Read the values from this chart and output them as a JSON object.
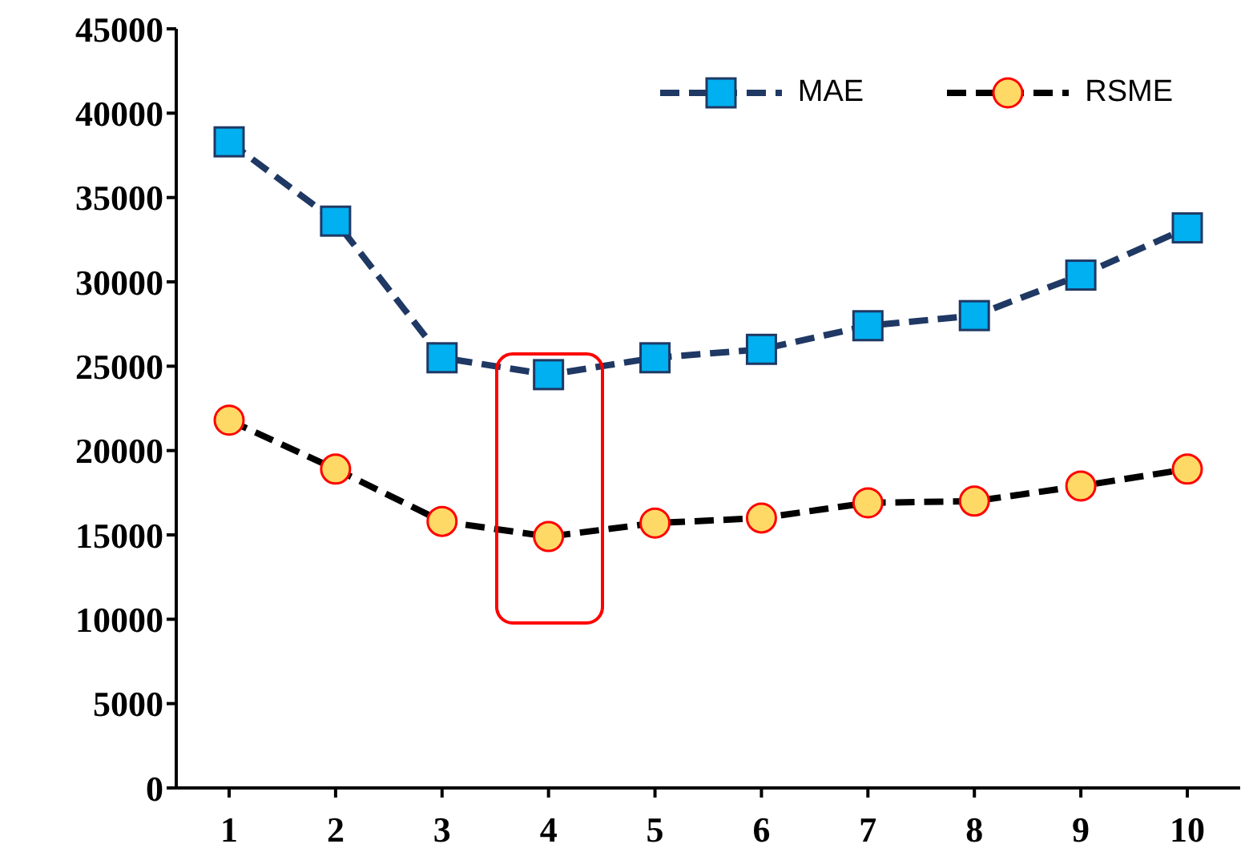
{
  "chart_data": {
    "type": "line",
    "categories": [
      "1",
      "2",
      "3",
      "4",
      "5",
      "6",
      "7",
      "8",
      "9",
      "10"
    ],
    "series": [
      {
        "name": "MAE",
        "color": "#1f3864",
        "marker": "square",
        "values": [
          38300,
          33600,
          25500,
          24500,
          25500,
          26000,
          27400,
          28000,
          30400,
          33200
        ]
      },
      {
        "name": "RSME",
        "color": "#000000",
        "marker": "circle",
        "values": [
          21800,
          18900,
          15800,
          14900,
          15700,
          16000,
          16900,
          17000,
          17900,
          18900
        ]
      }
    ],
    "ylim": [
      0,
      45000
    ],
    "yticks": [
      0,
      5000,
      10000,
      15000,
      20000,
      25000,
      30000,
      35000,
      40000,
      45000
    ],
    "grid": false,
    "legend": "top right",
    "line_style": "dashed"
  }
}
